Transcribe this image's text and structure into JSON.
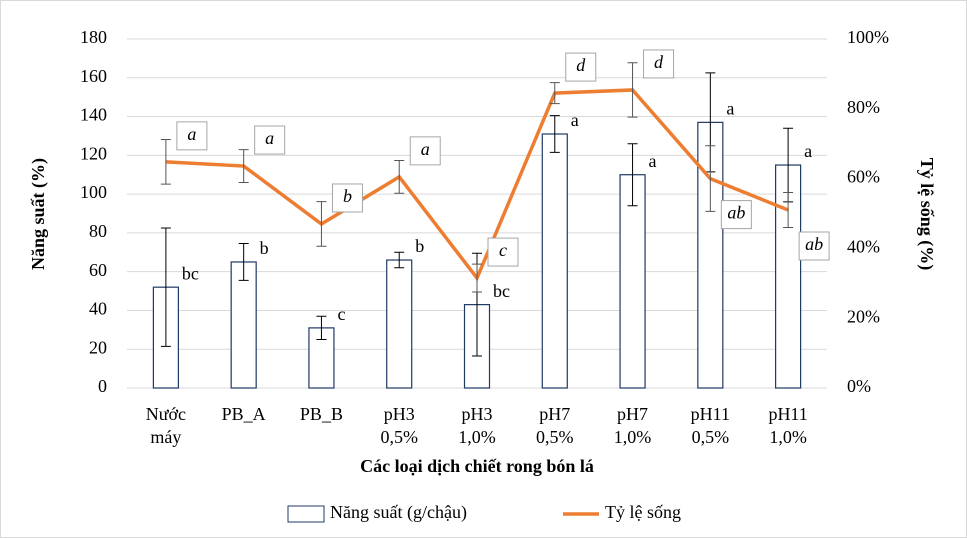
{
  "chart_data": {
    "type": "bar_line",
    "x_label": "Các loại dịch chiết rong bón lá",
    "y_label": "Năng suất (%)",
    "y2_label": "Tỷ lệ sống (%)",
    "categories": [
      [
        "Nước",
        "máy"
      ],
      [
        "PB_A"
      ],
      [
        "PB_B"
      ],
      [
        "pH3",
        "0,5%"
      ],
      [
        "pH3",
        "1,0%"
      ],
      [
        "pH7",
        "0,5%"
      ],
      [
        "pH7",
        "1,0%"
      ],
      [
        "pH11",
        "0,5%"
      ],
      [
        "pH11",
        "1,0%"
      ]
    ],
    "ylim": [
      0,
      180
    ],
    "yticks": [
      0,
      20,
      40,
      60,
      80,
      100,
      120,
      140,
      160,
      180
    ],
    "y2lim": [
      0,
      100
    ],
    "y2ticks": [
      {
        "value": 0,
        "label": "0%"
      },
      {
        "value": 20,
        "label": "20%"
      },
      {
        "value": 40,
        "label": "40%"
      },
      {
        "value": 60,
        "label": "60%"
      },
      {
        "value": 80,
        "label": "80%"
      },
      {
        "value": 100,
        "label": "100%"
      }
    ],
    "grid": true,
    "series": [
      {
        "name": "Năng suất (g/chậu)",
        "kind": "bar",
        "color": "#1f3864",
        "values": [
          52,
          65,
          31,
          66,
          43,
          131,
          110,
          137,
          115
        ],
        "errors": [
          30.5,
          9.5,
          6,
          4,
          26.5,
          9.5,
          16,
          25.5,
          19
        ],
        "annotations": [
          "bc",
          "b",
          "c",
          "b",
          "bc",
          "a",
          "a",
          "a",
          "a"
        ]
      },
      {
        "name": "Tỷ lệ sống",
        "kind": "line",
        "axis": "y2",
        "color": "#ed7d31",
        "values": [
          64.8,
          63.6,
          47,
          60.5,
          31.5,
          84.5,
          85.4,
          60,
          51
        ],
        "errors": [
          6.4,
          4.7,
          6.4,
          4.7,
          4,
          3,
          7.8,
          9.4,
          5
        ],
        "annotations": [
          "a",
          "a",
          "b",
          "a",
          "c",
          "d",
          "d",
          "ab",
          "ab"
        ]
      }
    ]
  }
}
